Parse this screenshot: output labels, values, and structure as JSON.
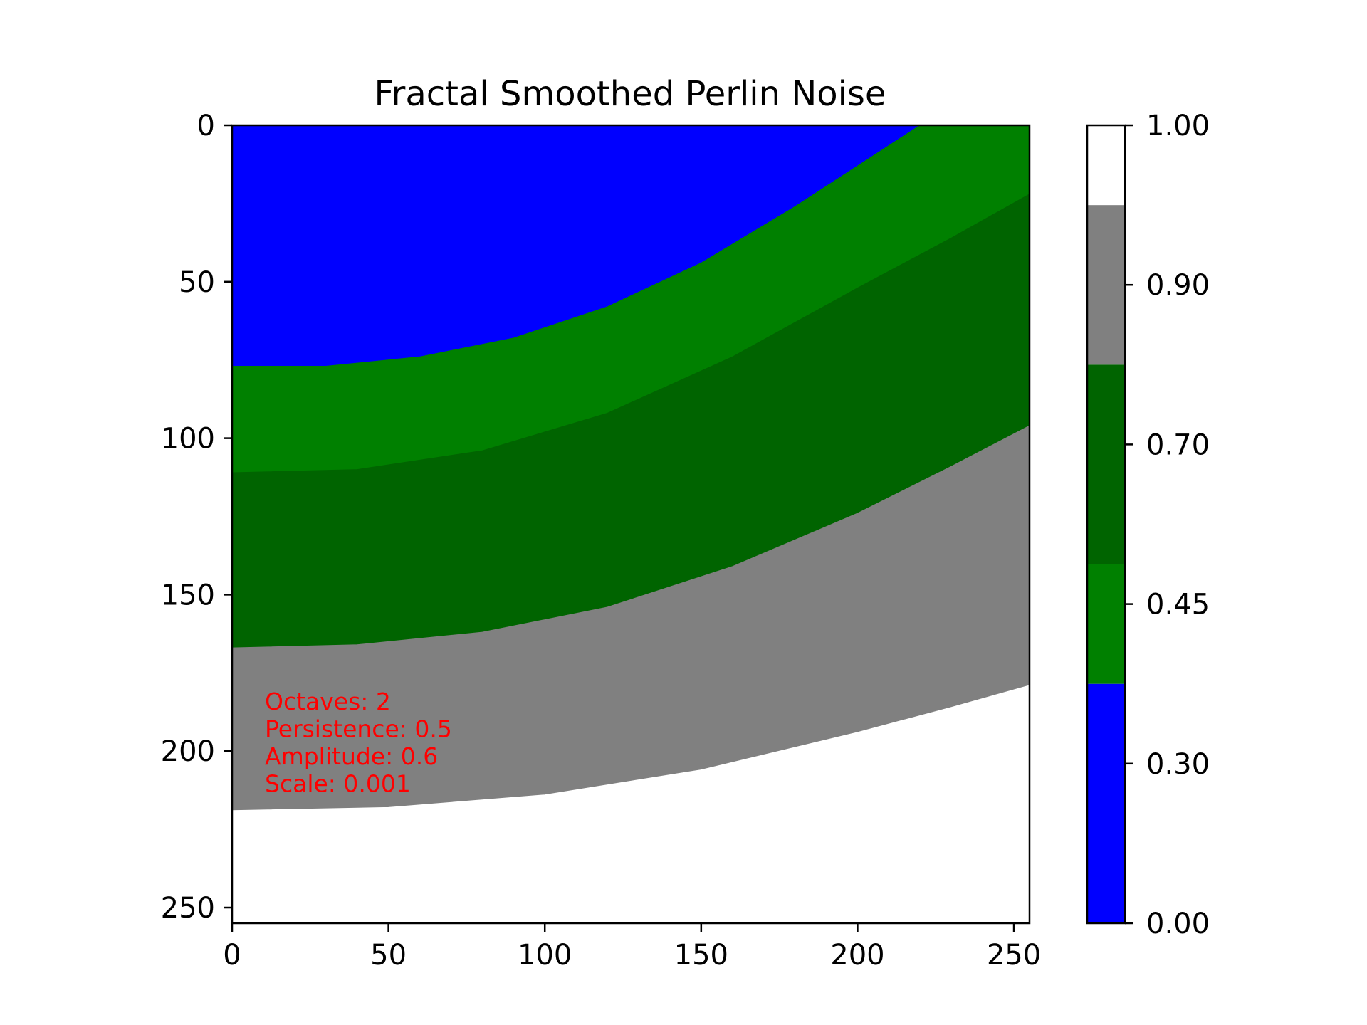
{
  "chart_data": {
    "type": "heatmap",
    "title": "Fractal Smoothed Perlin Noise",
    "xlabel": "",
    "ylabel": "",
    "xlim": [
      0,
      255
    ],
    "ylim": [
      255,
      0
    ],
    "x_ticks": [
      0,
      50,
      100,
      150,
      200,
      250
    ],
    "y_ticks": [
      0,
      50,
      100,
      150,
      200,
      250
    ],
    "grid": false,
    "y_axis_inverted": true,
    "contour_boundaries": [
      {
        "level": 0.3,
        "points": [
          [
            0,
            77
          ],
          [
            30,
            77
          ],
          [
            60,
            74
          ],
          [
            90,
            68
          ],
          [
            120,
            58
          ],
          [
            150,
            44
          ],
          [
            180,
            26
          ],
          [
            200,
            13
          ],
          [
            220,
            0
          ]
        ]
      },
      {
        "level": 0.45,
        "points": [
          [
            0,
            111
          ],
          [
            40,
            110
          ],
          [
            80,
            104
          ],
          [
            120,
            92
          ],
          [
            160,
            74
          ],
          [
            200,
            52
          ],
          [
            230,
            36
          ],
          [
            255,
            22
          ]
        ]
      },
      {
        "level": 0.7,
        "points": [
          [
            0,
            167
          ],
          [
            40,
            166
          ],
          [
            80,
            162
          ],
          [
            120,
            154
          ],
          [
            160,
            141
          ],
          [
            200,
            124
          ],
          [
            230,
            109
          ],
          [
            255,
            96
          ]
        ]
      },
      {
        "level": 0.9,
        "points": [
          [
            0,
            219
          ],
          [
            50,
            218
          ],
          [
            100,
            214
          ],
          [
            150,
            206
          ],
          [
            200,
            194
          ],
          [
            230,
            186
          ],
          [
            255,
            179
          ]
        ]
      }
    ],
    "colorbar": {
      "ticks": [
        "0.00",
        "0.30",
        "0.45",
        "0.70",
        "0.90",
        "1.00"
      ],
      "bands": [
        {
          "from": 0.0,
          "to": 0.3,
          "color": "#0000ff"
        },
        {
          "from": 0.3,
          "to": 0.45,
          "color": "#008000"
        },
        {
          "from": 0.45,
          "to": 0.7,
          "color": "#006400"
        },
        {
          "from": 0.7,
          "to": 0.9,
          "color": "#808080"
        },
        {
          "from": 0.9,
          "to": 1.0,
          "color": "#ffffff"
        }
      ]
    },
    "annotation": {
      "color": "#ff0000",
      "lines": [
        "Octaves: 2",
        "Persistence: 0.5",
        "Amplitude: 0.6",
        "Scale: 0.001"
      ]
    }
  }
}
